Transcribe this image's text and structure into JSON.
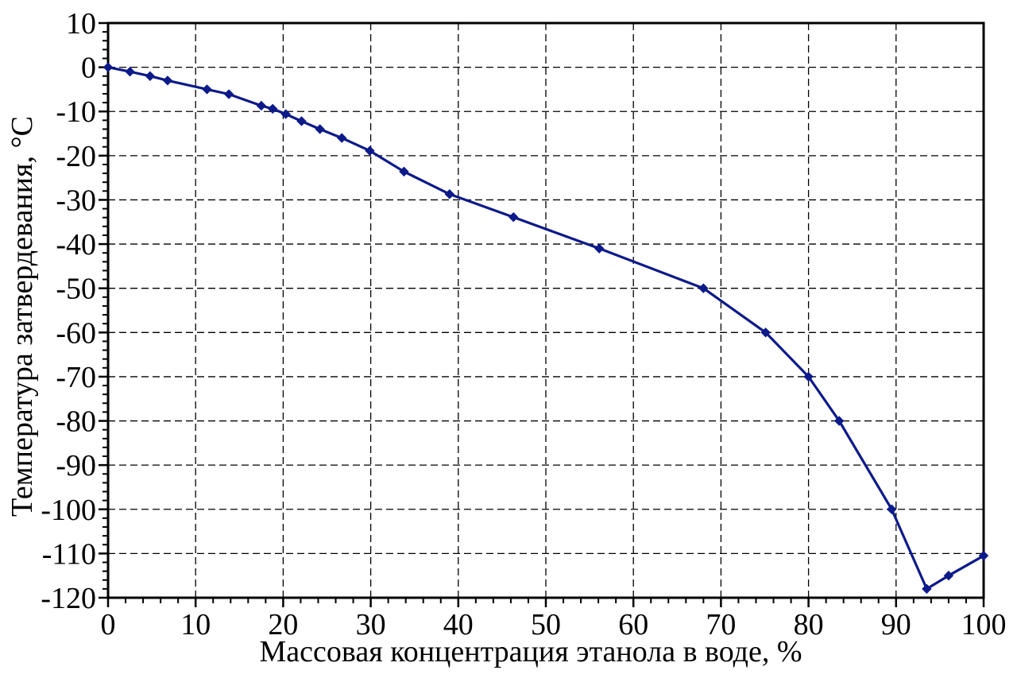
{
  "chart_data": {
    "type": "line",
    "xlabel": "Массовая концентрация этанола в воде, %",
    "ylabel": "Температура затвердевания, °C",
    "xlim": [
      0,
      100
    ],
    "ylim": [
      -120,
      10
    ],
    "grid": true,
    "x_ticks": [
      "0",
      "10",
      "20",
      "30",
      "40",
      "50",
      "60",
      "70",
      "80",
      "90",
      "100"
    ],
    "y_ticks": [
      "10",
      "0",
      "-10",
      "-20",
      "-30",
      "-40",
      "-50",
      "-60",
      "-70",
      "-80",
      "-90",
      "-100",
      "-110",
      "-120"
    ],
    "line_color": "#0d1a8a",
    "series": [
      {
        "x": [
          0,
          2.5,
          4.8,
          6.8,
          11.3,
          13.8,
          17.5,
          18.8,
          20.3,
          22.1,
          24.2,
          26.7,
          29.9,
          33.8,
          39.0,
          46.3,
          56.1,
          68.0,
          75.1,
          80.0,
          83.5,
          89.5,
          93.5,
          96.0,
          100.0
        ],
        "y": [
          0,
          -1,
          -2,
          -3,
          -5,
          -6.1,
          -8.7,
          -9.4,
          -10.6,
          -12.2,
          -14.0,
          -16.0,
          -18.9,
          -23.6,
          -28.7,
          -33.9,
          -41.0,
          -50.0,
          -60.0,
          -70.0,
          -80.0,
          -100.0,
          -118.0,
          -115.0,
          -110.5
        ]
      }
    ]
  }
}
